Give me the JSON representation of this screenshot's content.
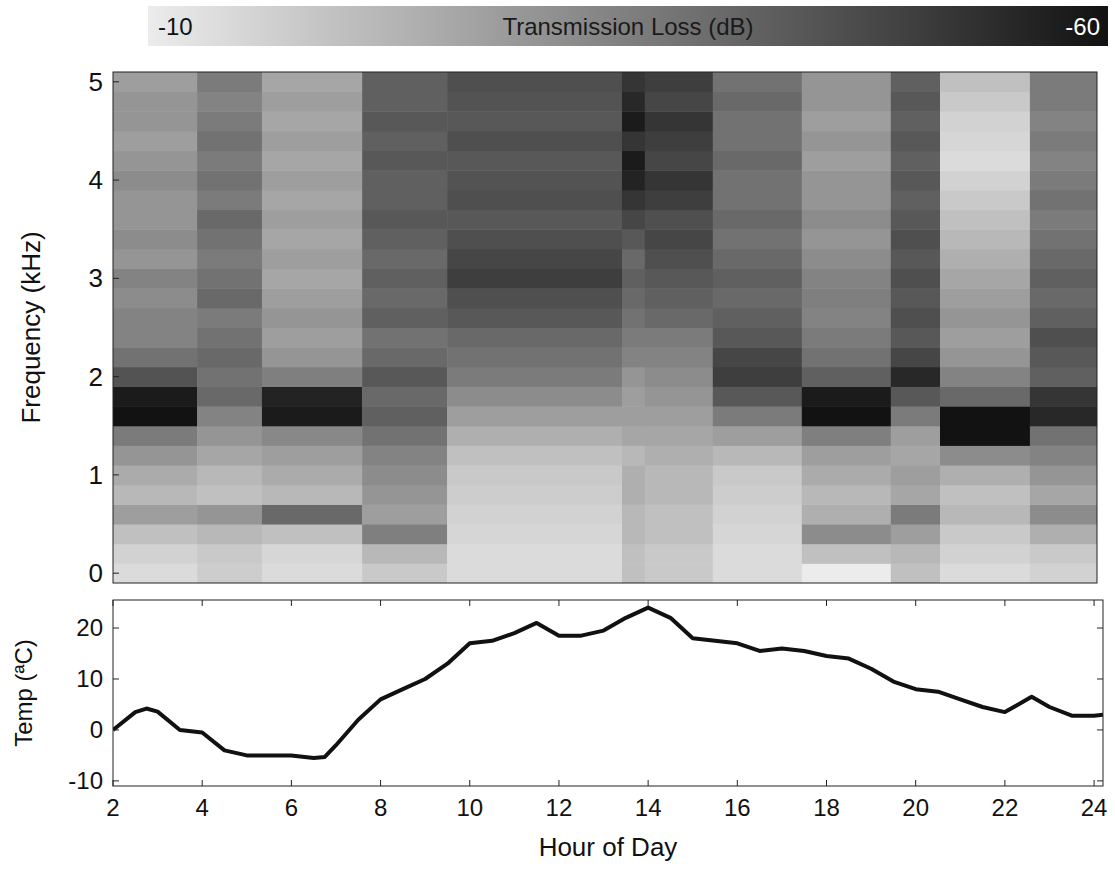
{
  "chart_data": [
    {
      "type": "heatmap",
      "ylabel": "Frequency (kHz)",
      "xlim": [
        2,
        24
      ],
      "ylim": [
        -0.1,
        5.1
      ],
      "yticks": [
        0,
        1,
        2,
        3,
        4,
        5
      ],
      "tick_labels": "y",
      "x_edges": [
        2,
        3.88,
        5.33,
        7.57,
        9.47,
        13.38,
        13.89,
        15.41,
        17.4,
        19.39,
        20.49,
        22.5,
        24
      ],
      "y_edges": [
        -0.1,
        0.1,
        0.3,
        0.5,
        0.7,
        0.9,
        1.1,
        1.3,
        1.5,
        1.7,
        1.9,
        2.1,
        2.3,
        2.5,
        2.7,
        2.9,
        3.1,
        3.3,
        3.5,
        3.7,
        3.9,
        4.1,
        4.3,
        4.5,
        4.7,
        4.9,
        5.1
      ],
      "cells": [
        [
          -14,
          -16,
          -20,
          -28,
          -22,
          -25,
          -30,
          -36,
          -60,
          -58,
          -45,
          -38,
          -34,
          -34,
          -32,
          -34,
          -30,
          -32,
          -30,
          -30,
          -32,
          -30,
          -28,
          -30,
          -30,
          -28
        ],
        [
          -17,
          -18,
          -22,
          -30,
          -20,
          -22,
          -26,
          -30,
          -34,
          -40,
          -38,
          -40,
          -38,
          -36,
          -40,
          -38,
          -36,
          -38,
          -40,
          -36,
          -38,
          -36,
          -38,
          -36,
          -34,
          -36
        ],
        [
          -14,
          -15,
          -20,
          -40,
          -22,
          -25,
          -28,
          -33,
          -58,
          -56,
          -35,
          -30,
          -28,
          -30,
          -28,
          -26,
          -28,
          -26,
          -28,
          -26,
          -28,
          -26,
          -28,
          -26,
          -28,
          -26
        ],
        [
          -18,
          -22,
          -35,
          -28,
          -30,
          -32,
          -34,
          -38,
          -42,
          -40,
          -44,
          -40,
          -38,
          -42,
          -40,
          -42,
          -40,
          -42,
          -44,
          -42,
          -42,
          -44,
          -42,
          -44,
          -42,
          -42
        ],
        [
          -14,
          -14,
          -15,
          -16,
          -17,
          -18,
          -20,
          -24,
          -28,
          -32,
          -36,
          -38,
          -40,
          -44,
          -46,
          -50,
          -48,
          -46,
          -44,
          -46,
          -45,
          -44,
          -46,
          -44,
          -45,
          -46
        ],
        [
          -20,
          -20,
          -22,
          -22,
          -24,
          -24,
          -22,
          -26,
          -28,
          -28,
          -30,
          -34,
          -36,
          -38,
          -40,
          -42,
          -40,
          -44,
          -48,
          -52,
          -56,
          -58,
          -52,
          -58,
          -55,
          -52
        ],
        [
          -18,
          -18,
          -20,
          -20,
          -22,
          -22,
          -24,
          -26,
          -28,
          -30,
          -32,
          -34,
          -36,
          -40,
          -42,
          -44,
          -46,
          -48,
          -46,
          -50,
          -52,
          -48,
          -50,
          -52,
          -48,
          -50
        ],
        [
          -14,
          -14,
          -15,
          -16,
          -17,
          -18,
          -22,
          -28,
          -36,
          -44,
          -50,
          -48,
          -44,
          -42,
          -40,
          -42,
          -40,
          -38,
          -40,
          -38,
          -38,
          -40,
          -38,
          -38,
          -40,
          -38
        ],
        [
          -10,
          -20,
          -32,
          -24,
          -22,
          -25,
          -28,
          -35,
          -60,
          -58,
          -42,
          -38,
          -36,
          -34,
          -35,
          -34,
          -32,
          -30,
          -32,
          -30,
          -30,
          -28,
          -30,
          -28,
          -30,
          -30
        ],
        [
          -20,
          -22,
          -28,
          -36,
          -26,
          -28,
          -26,
          -28,
          -36,
          -44,
          -55,
          -48,
          -44,
          -46,
          -44,
          -46,
          -44,
          -46,
          -44,
          -42,
          -44,
          -42,
          -44,
          -42,
          -44,
          -42
        ],
        [
          -14,
          -16,
          -18,
          -22,
          -20,
          -24,
          -32,
          -60,
          -60,
          -40,
          -34,
          -30,
          -28,
          -30,
          -28,
          -26,
          -24,
          -22,
          -20,
          -18,
          -16,
          -14,
          -15,
          -16,
          -18,
          -20
        ],
        [
          -16,
          -18,
          -24,
          -32,
          -26,
          -30,
          -34,
          -38,
          -55,
          -52,
          -42,
          -44,
          -46,
          -42,
          -40,
          -42,
          -40,
          -38,
          -36,
          -38,
          -36,
          -34,
          -36,
          -34,
          -36,
          -36
        ]
      ],
      "colorbar": {
        "label": "Transmission Loss (dB)",
        "range": [
          -10,
          -60
        ],
        "ticks": [
          -10,
          -60
        ]
      }
    },
    {
      "type": "line",
      "xlabel": "Hour of Day",
      "ylabel": "Temp (ªC)",
      "xlim": [
        2,
        24.2
      ],
      "ylim": [
        -11,
        25.5
      ],
      "xticks": [
        2,
        4,
        6,
        8,
        10,
        12,
        14,
        16,
        18,
        20,
        22,
        24
      ],
      "yticks": [
        -10,
        0,
        10,
        20
      ],
      "color": "#111111",
      "x": [
        2,
        2.5,
        2.75,
        3,
        3.5,
        4,
        4.5,
        5,
        5.5,
        6,
        6.5,
        6.75,
        7,
        7.5,
        8,
        8.5,
        9,
        9.5,
        10,
        10.5,
        11,
        11.5,
        12,
        12.5,
        13,
        13.5,
        14,
        14.5,
        15,
        15.5,
        16,
        16.5,
        17,
        17.5,
        18,
        18.5,
        19,
        19.5,
        20,
        20.5,
        21,
        21.5,
        22,
        22.3,
        22.6,
        23,
        23.5,
        24,
        24.2
      ],
      "values": [
        0,
        3.5,
        4.2,
        3.6,
        0,
        -0.5,
        -4,
        -5,
        -5,
        -5,
        -5.5,
        -5.3,
        -3,
        2,
        6,
        8,
        10,
        13,
        17,
        17.5,
        19,
        21,
        18.5,
        18.5,
        19.5,
        22,
        24,
        22,
        18,
        17.5,
        17,
        15.5,
        16,
        15.5,
        14.5,
        14,
        12,
        9.5,
        8,
        7.5,
        6,
        4.5,
        3.5,
        5,
        6.5,
        4.5,
        2.8,
        2.8,
        3
      ]
    }
  ]
}
